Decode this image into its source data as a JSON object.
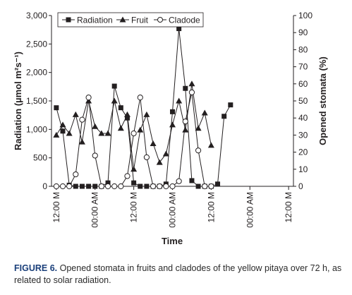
{
  "chart_data": {
    "type": "line",
    "xlabel": "Time",
    "ylabel_left": "Radiation (µmol m²s⁻¹)",
    "ylabel_right": "Opened stomata (%)",
    "ylim_left": [
      0,
      3000
    ],
    "ylim_right": [
      0,
      100
    ],
    "yticks_left": [
      "0",
      "500",
      "1,000",
      "1,500",
      "2,000",
      "2,500",
      "3,000"
    ],
    "yticks_right": [
      "0",
      "10",
      "20",
      "30",
      "40",
      "50",
      "60",
      "70",
      "80",
      "90",
      "100"
    ],
    "x_tick_labels": [
      {
        "t": 0,
        "label": "12:00 M"
      },
      {
        "t": 12,
        "label": "00:00 AM"
      },
      {
        "t": 24,
        "label": "12:00 M"
      },
      {
        "t": 36,
        "label": "00:00 AM"
      },
      {
        "t": 48,
        "label": "12:00 M"
      },
      {
        "t": 60,
        "label": "00:00 AM"
      },
      {
        "t": 72,
        "label": "12:00 M"
      }
    ],
    "xlim": [
      -1.5,
      73.5
    ],
    "legend_position": "top-left",
    "series": [
      {
        "name": "Radiation",
        "axis": "left",
        "marker": "filled-square",
        "points": [
          [
            0,
            1380
          ],
          [
            2,
            970
          ],
          [
            4,
            20
          ],
          [
            6,
            0
          ],
          [
            8,
            0
          ],
          [
            10,
            0
          ],
          [
            12,
            0
          ],
          [
            14,
            0
          ],
          [
            16,
            60
          ],
          [
            18,
            1760
          ],
          [
            20,
            1380
          ],
          [
            22,
            1200
          ],
          [
            24,
            60
          ],
          [
            26,
            0
          ],
          [
            28,
            0
          ],
          [
            30,
            0
          ],
          [
            32,
            0
          ],
          [
            34,
            40
          ],
          [
            36,
            1310
          ],
          [
            38,
            2770
          ],
          [
            40,
            1720
          ],
          [
            42,
            100
          ],
          [
            44,
            0
          ],
          [
            46,
            0
          ],
          [
            48,
            0
          ],
          [
            50,
            40
          ],
          [
            52,
            1230
          ],
          [
            54,
            1430
          ]
        ]
      },
      {
        "name": "Fruit",
        "axis": "right",
        "marker": "filled-triangle",
        "points": [
          [
            0,
            30
          ],
          [
            2,
            36
          ],
          [
            4,
            31
          ],
          [
            6,
            42
          ],
          [
            8,
            26
          ],
          [
            10,
            50
          ],
          [
            12,
            35
          ],
          [
            14,
            31
          ],
          [
            16,
            31
          ],
          [
            18,
            50
          ],
          [
            20,
            34
          ],
          [
            22,
            42
          ],
          [
            24,
            10
          ],
          [
            26,
            33
          ],
          [
            28,
            42
          ],
          [
            30,
            25
          ],
          [
            32,
            14
          ],
          [
            34,
            19
          ],
          [
            36,
            36
          ],
          [
            38,
            50
          ],
          [
            40,
            33
          ],
          [
            42,
            60
          ],
          [
            44,
            34
          ],
          [
            46,
            43
          ],
          [
            48,
            24
          ]
        ]
      },
      {
        "name": "Cladode",
        "axis": "right",
        "marker": "open-circle",
        "points": [
          [
            0,
            0
          ],
          [
            2,
            0
          ],
          [
            4,
            0
          ],
          [
            6,
            7
          ],
          [
            8,
            39
          ],
          [
            10,
            52
          ],
          [
            12,
            18
          ],
          [
            14,
            0
          ],
          [
            16,
            0
          ],
          [
            18,
            0
          ],
          [
            20,
            0
          ],
          [
            22,
            6
          ],
          [
            24,
            31
          ],
          [
            26,
            52
          ],
          [
            28,
            17
          ],
          [
            30,
            0
          ],
          [
            32,
            0
          ],
          [
            34,
            0
          ],
          [
            36,
            0
          ],
          [
            38,
            3
          ],
          [
            40,
            38
          ],
          [
            42,
            55
          ],
          [
            44,
            21
          ],
          [
            46,
            0
          ],
          [
            48,
            0
          ]
        ]
      }
    ]
  },
  "caption": {
    "label": "FIGURE 6.",
    "text": "Opened stomata in fruits and cladodes of the yellow pitaya over 72 h, as related to solar radiation."
  }
}
